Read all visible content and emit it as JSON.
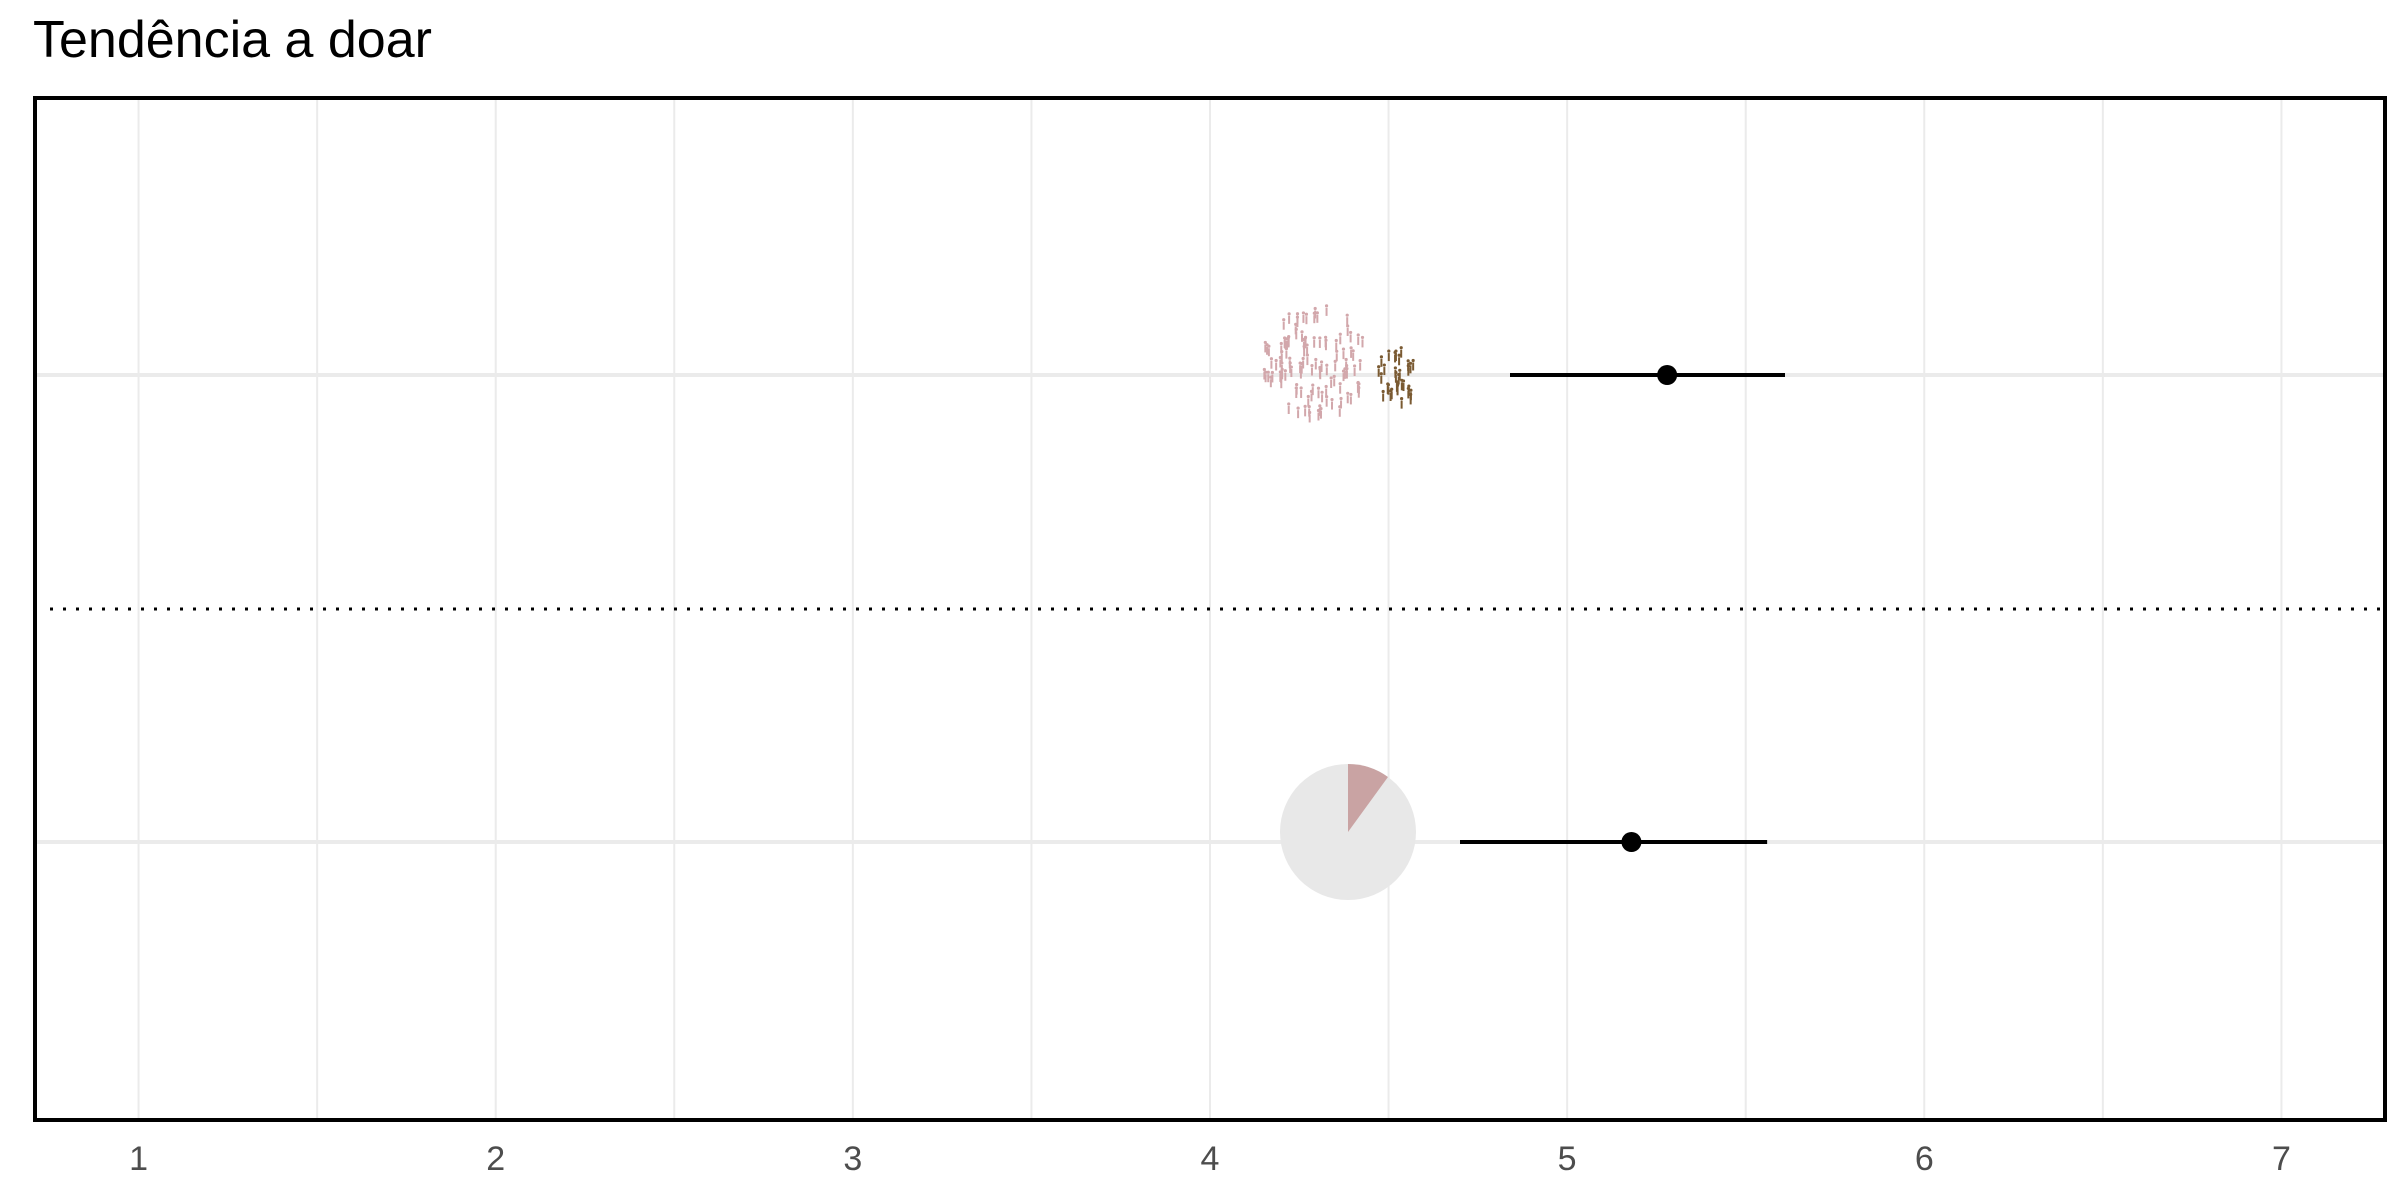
{
  "chart_data": {
    "type": "scatter",
    "title": "Tendência a doar",
    "xlabel": "",
    "ylabel": "",
    "xlim": [
      0.71,
      7.29
    ],
    "xticks": [
      1,
      2,
      3,
      4,
      5,
      6,
      7
    ],
    "grid": true,
    "separator": "dotted",
    "colors": {
      "point": "#000000",
      "people_light": "#d2a7ab",
      "people_dark": "#7a5a32",
      "pie_background": "#e8e8e8",
      "pie_slice": "#c9a3a3"
    },
    "series": [
      {
        "row": 1,
        "estimate": 5.28,
        "ci": [
          4.84,
          5.61
        ],
        "icon": "people-cluster-icon"
      },
      {
        "row": 2,
        "estimate": 5.18,
        "ci": [
          4.7,
          5.56
        ],
        "icon": "pie-icon",
        "pie_fraction": 0.1
      }
    ]
  }
}
